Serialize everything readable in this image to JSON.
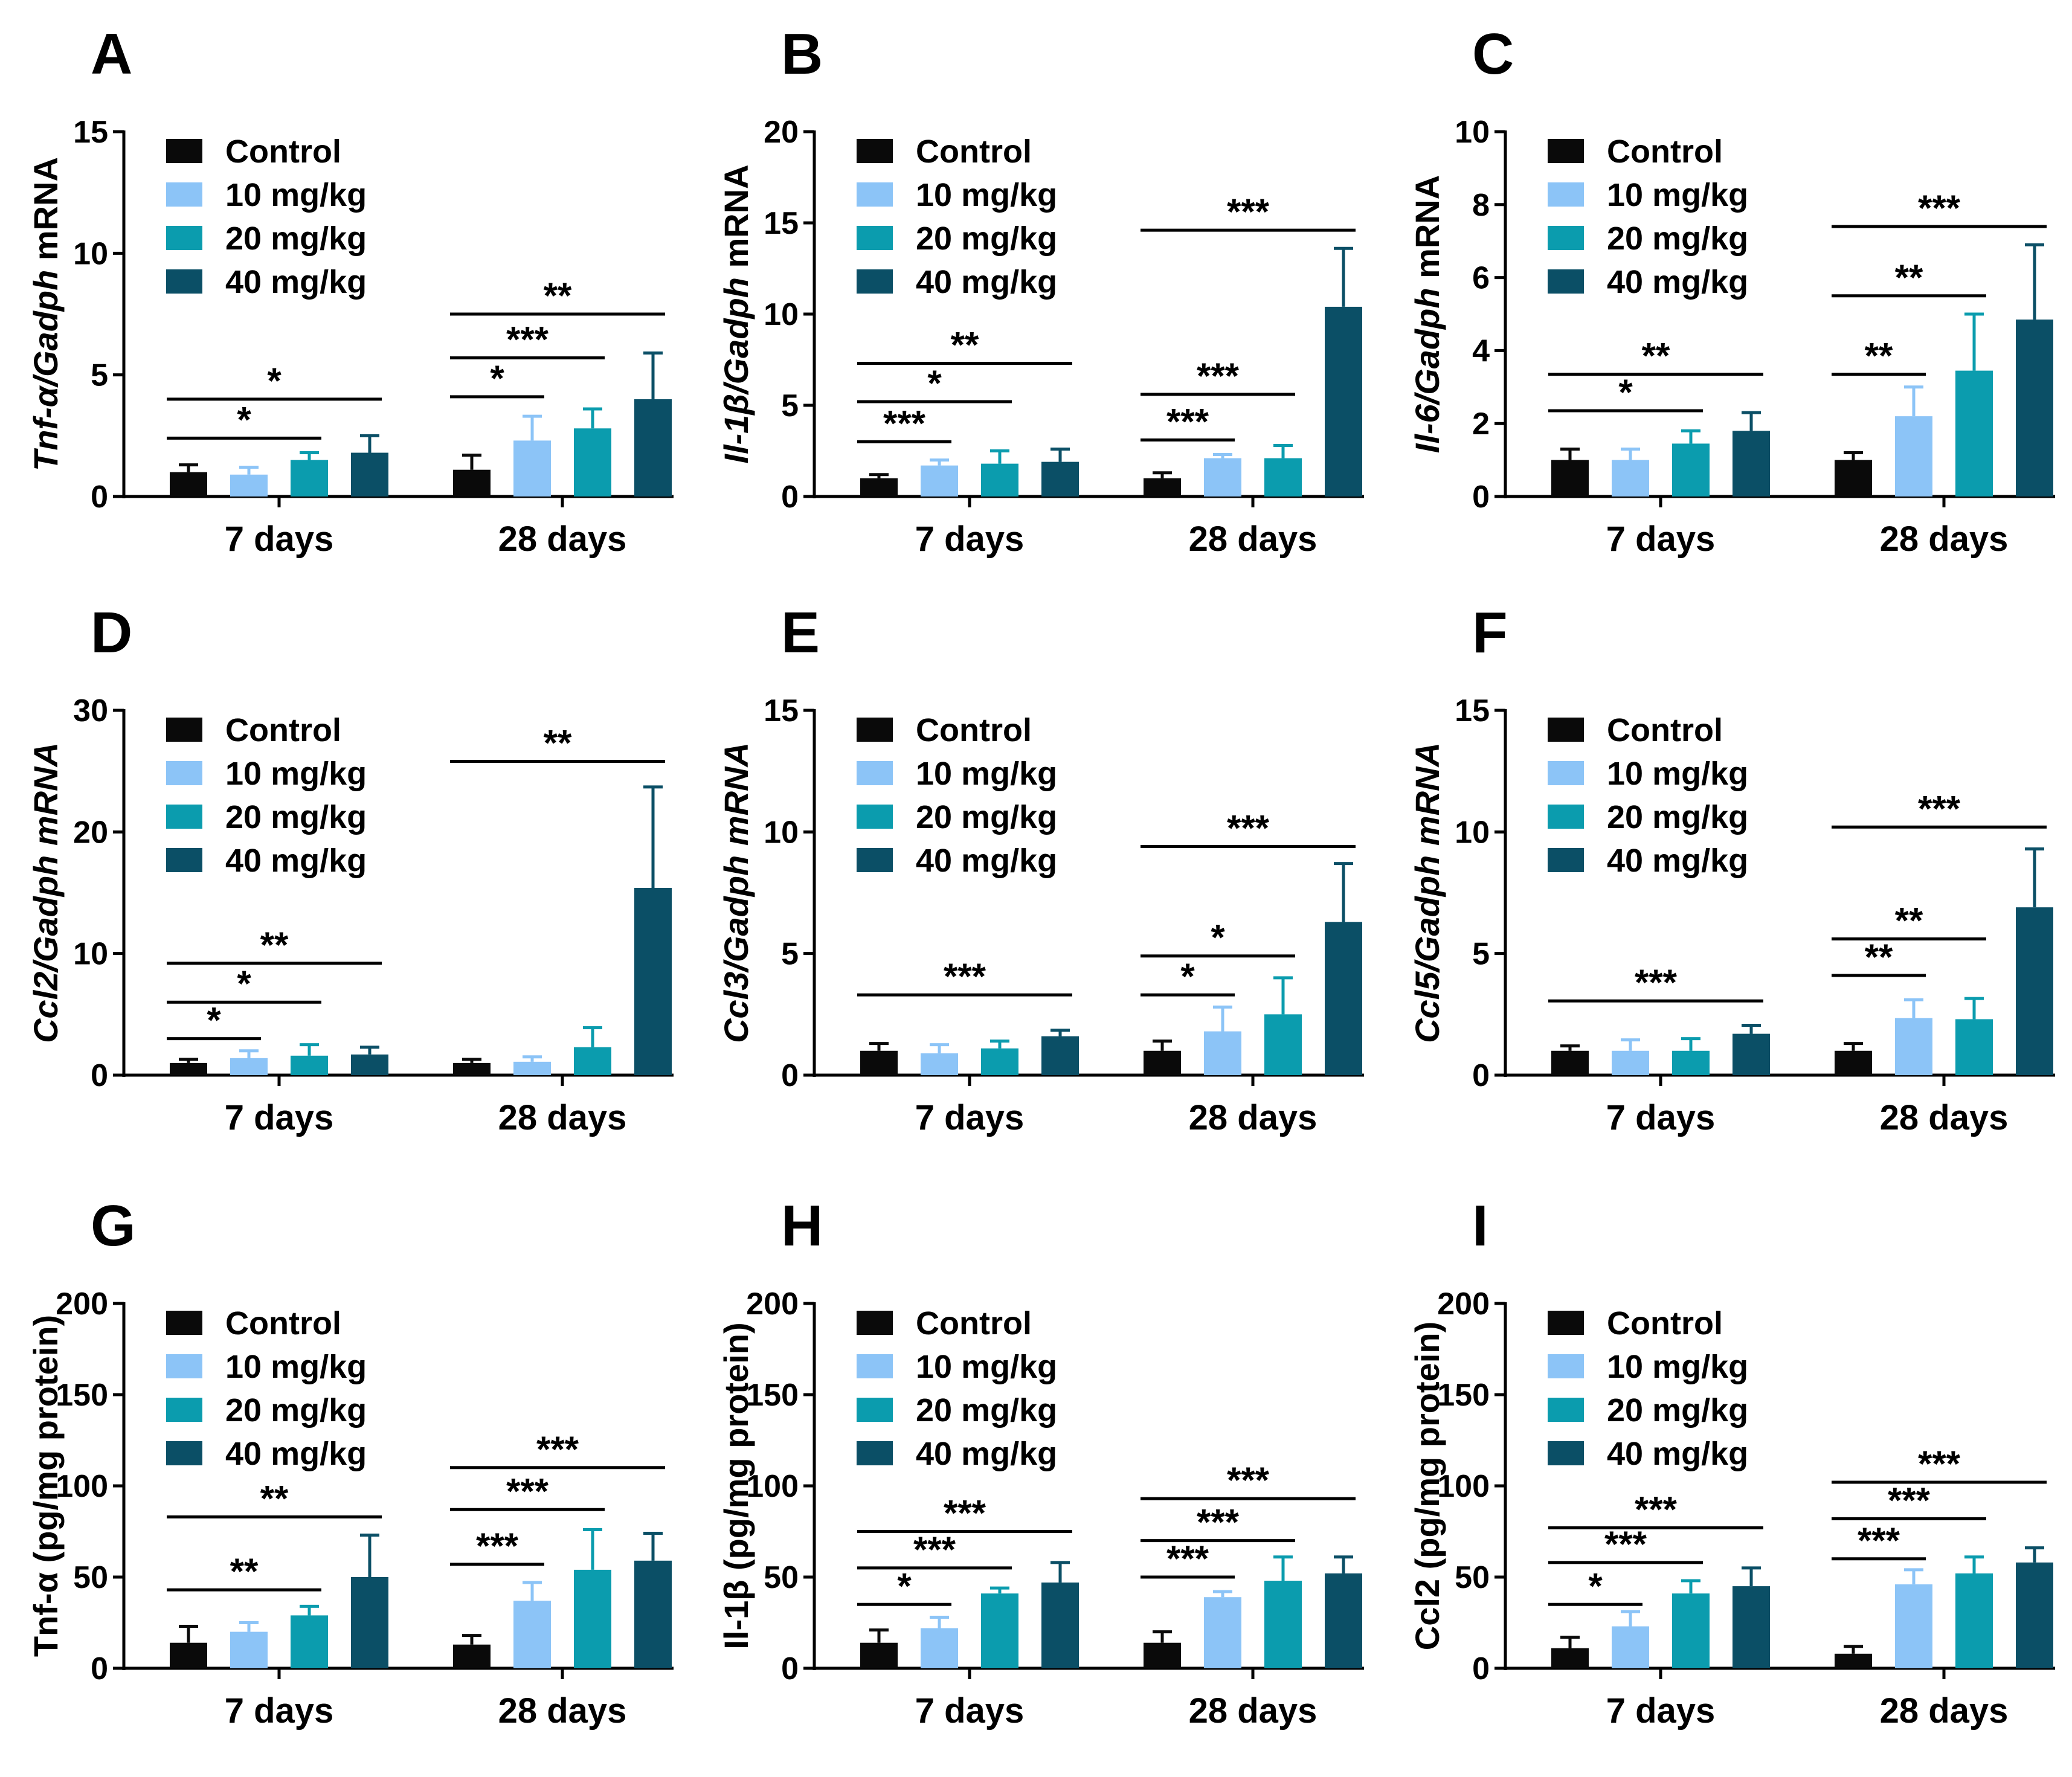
{
  "figure": {
    "colors": {
      "Control": "#0a0a0a",
      "10 mg/kg": "#8cc4f7",
      "20 mg/kg": "#0b9cae",
      "40 mg/kg": "#0b4f66"
    },
    "groups": [
      "7 days",
      "28 days"
    ],
    "legend": [
      "Control",
      "10 mg/kg",
      "20 mg/kg",
      "40 mg/kg"
    ]
  },
  "chart_data": [
    {
      "label": "A",
      "type": "bar",
      "title": "",
      "ylabel": [
        "Tnf-α/Gadph",
        " mRNA"
      ],
      "yitalic": [
        true,
        false
      ],
      "yticks": [
        0,
        5,
        10,
        15
      ],
      "ylim": [
        0,
        15
      ],
      "categories": [
        "7 days",
        "28 days"
      ],
      "series": [
        {
          "name": "Control",
          "values": [
            1.0,
            1.1
          ],
          "errors": [
            0.3,
            0.6
          ]
        },
        {
          "name": "10 mg/kg",
          "values": [
            0.9,
            2.3
          ],
          "errors": [
            0.3,
            1.0
          ]
        },
        {
          "name": "20 mg/kg",
          "values": [
            1.5,
            2.8
          ],
          "errors": [
            0.3,
            0.8
          ]
        },
        {
          "name": "40 mg/kg",
          "values": [
            1.8,
            4.0
          ],
          "errors": [
            0.7,
            1.9
          ]
        }
      ],
      "significance": [
        {
          "group": 0,
          "from": 0,
          "to": 2,
          "level": 2.4,
          "label": "*"
        },
        {
          "group": 0,
          "from": 0,
          "to": 3,
          "level": 4.0,
          "label": "*"
        },
        {
          "group": 1,
          "from": 0,
          "to": 1,
          "level": 4.1,
          "label": "*"
        },
        {
          "group": 1,
          "from": 0,
          "to": 2,
          "level": 5.7,
          "label": "***"
        },
        {
          "group": 1,
          "from": 0,
          "to": 3,
          "level": 7.5,
          "label": "**"
        }
      ]
    },
    {
      "label": "B",
      "type": "bar",
      "title": "",
      "ylabel": [
        "Il-1β/Gadph",
        " mRNA"
      ],
      "yitalic": [
        true,
        false
      ],
      "yticks": [
        0,
        5,
        10,
        15,
        20
      ],
      "ylim": [
        0,
        20
      ],
      "categories": [
        "7 days",
        "28 days"
      ],
      "series": [
        {
          "name": "Control",
          "values": [
            1.0,
            1.0
          ],
          "errors": [
            0.2,
            0.3
          ]
        },
        {
          "name": "10 mg/kg",
          "values": [
            1.7,
            2.1
          ],
          "errors": [
            0.3,
            0.2
          ]
        },
        {
          "name": "20 mg/kg",
          "values": [
            1.8,
            2.1
          ],
          "errors": [
            0.7,
            0.7
          ]
        },
        {
          "name": "40 mg/kg",
          "values": [
            1.9,
            10.4
          ],
          "errors": [
            0.7,
            3.2
          ]
        }
      ],
      "significance": [
        {
          "group": 0,
          "from": 0,
          "to": 1,
          "level": 3.0,
          "label": "***"
        },
        {
          "group": 0,
          "from": 0,
          "to": 2,
          "level": 5.2,
          "label": "*"
        },
        {
          "group": 0,
          "from": 0,
          "to": 3,
          "level": 7.3,
          "label": "**"
        },
        {
          "group": 1,
          "from": 0,
          "to": 1,
          "level": 3.1,
          "label": "***"
        },
        {
          "group": 1,
          "from": 0,
          "to": 2,
          "level": 5.6,
          "label": "***"
        },
        {
          "group": 1,
          "from": 0,
          "to": 3,
          "level": 14.6,
          "label": "***"
        }
      ]
    },
    {
      "label": "C",
      "type": "bar",
      "title": "",
      "ylabel": [
        "Il-6/Gadph",
        " mRNA"
      ],
      "yitalic": [
        true,
        false
      ],
      "yticks": [
        0,
        2,
        4,
        6,
        8,
        10
      ],
      "ylim": [
        0,
        10
      ],
      "categories": [
        "7 days",
        "28 days"
      ],
      "series": [
        {
          "name": "Control",
          "values": [
            1.0,
            1.0
          ],
          "errors": [
            0.3,
            0.2
          ]
        },
        {
          "name": "10 mg/kg",
          "values": [
            1.0,
            2.2
          ],
          "errors": [
            0.3,
            0.8
          ]
        },
        {
          "name": "20 mg/kg",
          "values": [
            1.45,
            3.45
          ],
          "errors": [
            0.35,
            1.55
          ]
        },
        {
          "name": "40 mg/kg",
          "values": [
            1.8,
            4.85
          ],
          "errors": [
            0.5,
            2.05
          ]
        }
      ],
      "significance": [
        {
          "group": 0,
          "from": 0,
          "to": 2,
          "level": 2.35,
          "label": "*"
        },
        {
          "group": 0,
          "from": 0,
          "to": 3,
          "level": 3.35,
          "label": "**"
        },
        {
          "group": 1,
          "from": 0,
          "to": 1,
          "level": 3.35,
          "label": "**"
        },
        {
          "group": 1,
          "from": 0,
          "to": 2,
          "level": 5.5,
          "label": "**"
        },
        {
          "group": 1,
          "from": 0,
          "to": 3,
          "level": 7.4,
          "label": "***"
        }
      ]
    },
    {
      "label": "D",
      "type": "bar",
      "title": "",
      "ylabel": [
        "Ccl2/Gadph",
        " mRNA"
      ],
      "yitalic": [
        true,
        true
      ],
      "yticks": [
        0,
        10,
        20,
        30
      ],
      "ylim": [
        0,
        30
      ],
      "categories": [
        "7 days",
        "28 days"
      ],
      "series": [
        {
          "name": "Control",
          "values": [
            1.0,
            1.0
          ],
          "errors": [
            0.3,
            0.3
          ]
        },
        {
          "name": "10 mg/kg",
          "values": [
            1.4,
            1.1
          ],
          "errors": [
            0.6,
            0.4
          ]
        },
        {
          "name": "20 mg/kg",
          "values": [
            1.6,
            2.3
          ],
          "errors": [
            0.9,
            1.6
          ]
        },
        {
          "name": "40 mg/kg",
          "values": [
            1.7,
            15.4
          ],
          "errors": [
            0.6,
            8.3
          ]
        }
      ],
      "significance": [
        {
          "group": 0,
          "from": 0,
          "to": 1,
          "level": 3.0,
          "label": "*"
        },
        {
          "group": 0,
          "from": 0,
          "to": 2,
          "level": 6.0,
          "label": "*"
        },
        {
          "group": 0,
          "from": 0,
          "to": 3,
          "level": 9.2,
          "label": "**"
        },
        {
          "group": 1,
          "from": 0,
          "to": 3,
          "level": 25.8,
          "label": "**"
        }
      ]
    },
    {
      "label": "E",
      "type": "bar",
      "title": "",
      "ylabel": [
        "Ccl3/Gadph",
        " mRNA"
      ],
      "yitalic": [
        true,
        true
      ],
      "yticks": [
        0,
        5,
        10,
        15
      ],
      "ylim": [
        0,
        15
      ],
      "categories": [
        "7 days",
        "28 days"
      ],
      "series": [
        {
          "name": "Control",
          "values": [
            1.0,
            1.0
          ],
          "errors": [
            0.3,
            0.4
          ]
        },
        {
          "name": "10 mg/kg",
          "values": [
            0.9,
            1.8
          ],
          "errors": [
            0.35,
            1.0
          ]
        },
        {
          "name": "20 mg/kg",
          "values": [
            1.1,
            2.5
          ],
          "errors": [
            0.3,
            1.5
          ]
        },
        {
          "name": "40 mg/kg",
          "values": [
            1.6,
            6.3
          ],
          "errors": [
            0.25,
            2.4
          ]
        }
      ],
      "significance": [
        {
          "group": 0,
          "from": 0,
          "to": 3,
          "level": 3.3,
          "label": "***"
        },
        {
          "group": 1,
          "from": 0,
          "to": 1,
          "level": 3.3,
          "label": "*"
        },
        {
          "group": 1,
          "from": 0,
          "to": 2,
          "level": 4.9,
          "label": "*"
        },
        {
          "group": 1,
          "from": 0,
          "to": 3,
          "level": 9.4,
          "label": "***"
        }
      ]
    },
    {
      "label": "F",
      "type": "bar",
      "title": "",
      "ylabel": [
        "Ccl5/Gadph",
        " mRNA"
      ],
      "yitalic": [
        true,
        true
      ],
      "yticks": [
        0,
        5,
        10,
        15
      ],
      "ylim": [
        0,
        15
      ],
      "categories": [
        "7 days",
        "28 days"
      ],
      "series": [
        {
          "name": "Control",
          "values": [
            1.0,
            1.0
          ],
          "errors": [
            0.2,
            0.3
          ]
        },
        {
          "name": "10 mg/kg",
          "values": [
            1.0,
            2.35
          ],
          "errors": [
            0.45,
            0.75
          ]
        },
        {
          "name": "20 mg/kg",
          "values": [
            1.0,
            2.3
          ],
          "errors": [
            0.5,
            0.85
          ]
        },
        {
          "name": "40 mg/kg",
          "values": [
            1.7,
            6.9
          ],
          "errors": [
            0.35,
            2.4
          ]
        }
      ],
      "significance": [
        {
          "group": 0,
          "from": 0,
          "to": 3,
          "level": 3.05,
          "label": "***"
        },
        {
          "group": 1,
          "from": 0,
          "to": 1,
          "level": 4.1,
          "label": "**"
        },
        {
          "group": 1,
          "from": 0,
          "to": 2,
          "level": 5.6,
          "label": "**"
        },
        {
          "group": 1,
          "from": 0,
          "to": 3,
          "level": 10.2,
          "label": "***"
        }
      ]
    },
    {
      "label": "G",
      "type": "bar",
      "title": "",
      "ylabel": [
        "Tnf-α (pg/mg protein)"
      ],
      "yitalic": [
        false
      ],
      "yticks": [
        0,
        50,
        100,
        150,
        200
      ],
      "ylim": [
        0,
        200
      ],
      "categories": [
        "7 days",
        "28 days"
      ],
      "series": [
        {
          "name": "Control",
          "values": [
            14,
            13
          ],
          "errors": [
            9,
            5
          ]
        },
        {
          "name": "10 mg/kg",
          "values": [
            20,
            37
          ],
          "errors": [
            5,
            10
          ]
        },
        {
          "name": "20 mg/kg",
          "values": [
            29,
            54
          ],
          "errors": [
            5,
            22
          ]
        },
        {
          "name": "40 mg/kg",
          "values": [
            50,
            59
          ],
          "errors": [
            23,
            15
          ]
        }
      ],
      "significance": [
        {
          "group": 0,
          "from": 0,
          "to": 2,
          "level": 43,
          "label": "**"
        },
        {
          "group": 0,
          "from": 0,
          "to": 3,
          "level": 83,
          "label": "**"
        },
        {
          "group": 1,
          "from": 0,
          "to": 1,
          "level": 57,
          "label": "***"
        },
        {
          "group": 1,
          "from": 0,
          "to": 2,
          "level": 87,
          "label": "***"
        },
        {
          "group": 1,
          "from": 0,
          "to": 3,
          "level": 110,
          "label": "***"
        }
      ]
    },
    {
      "label": "H",
      "type": "bar",
      "title": "",
      "ylabel": [
        "Il-1β (pg/mg protein)"
      ],
      "yitalic": [
        false
      ],
      "yticks": [
        0,
        50,
        100,
        150,
        200
      ],
      "ylim": [
        0,
        200
      ],
      "categories": [
        "7 days",
        "28 days"
      ],
      "series": [
        {
          "name": "Control",
          "values": [
            14,
            14
          ],
          "errors": [
            7,
            6
          ]
        },
        {
          "name": "10 mg/kg",
          "values": [
            22,
            39
          ],
          "errors": [
            6,
            3
          ]
        },
        {
          "name": "20 mg/kg",
          "values": [
            41,
            48
          ],
          "errors": [
            3,
            13
          ]
        },
        {
          "name": "40 mg/kg",
          "values": [
            47,
            52
          ],
          "errors": [
            11,
            9
          ]
        }
      ],
      "significance": [
        {
          "group": 0,
          "from": 0,
          "to": 1,
          "level": 35,
          "label": "*"
        },
        {
          "group": 0,
          "from": 0,
          "to": 2,
          "level": 55,
          "label": "***"
        },
        {
          "group": 0,
          "from": 0,
          "to": 3,
          "level": 75,
          "label": "***"
        },
        {
          "group": 1,
          "from": 0,
          "to": 1,
          "level": 50,
          "label": "***"
        },
        {
          "group": 1,
          "from": 0,
          "to": 2,
          "level": 70,
          "label": "***"
        },
        {
          "group": 1,
          "from": 0,
          "to": 3,
          "level": 93,
          "label": "***"
        }
      ]
    },
    {
      "label": "I",
      "type": "bar",
      "title": "",
      "ylabel": [
        "Ccl2 (pg/mg protein)"
      ],
      "yitalic": [
        false
      ],
      "yticks": [
        0,
        50,
        100,
        150,
        200
      ],
      "ylim": [
        0,
        200
      ],
      "categories": [
        "7 days",
        "28 days"
      ],
      "series": [
        {
          "name": "Control",
          "values": [
            11,
            8
          ],
          "errors": [
            6,
            4
          ]
        },
        {
          "name": "10 mg/kg",
          "values": [
            23,
            46
          ],
          "errors": [
            8,
            8
          ]
        },
        {
          "name": "20 mg/kg",
          "values": [
            41,
            52
          ],
          "errors": [
            7,
            9
          ]
        },
        {
          "name": "40 mg/kg",
          "values": [
            45,
            58
          ],
          "errors": [
            10,
            8
          ]
        }
      ],
      "significance": [
        {
          "group": 0,
          "from": 0,
          "to": 1,
          "level": 35,
          "label": "*"
        },
        {
          "group": 0,
          "from": 0,
          "to": 2,
          "level": 58,
          "label": "***"
        },
        {
          "group": 0,
          "from": 0,
          "to": 3,
          "level": 77,
          "label": "***"
        },
        {
          "group": 1,
          "from": 0,
          "to": 1,
          "level": 60,
          "label": "***"
        },
        {
          "group": 1,
          "from": 0,
          "to": 2,
          "level": 82,
          "label": "***"
        },
        {
          "group": 1,
          "from": 0,
          "to": 3,
          "level": 102,
          "label": "***"
        }
      ]
    }
  ]
}
